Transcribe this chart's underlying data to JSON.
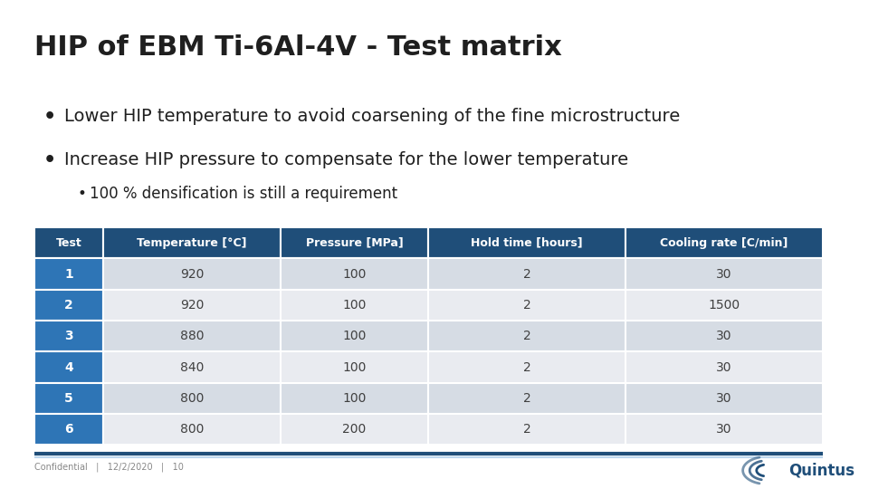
{
  "title": "HIP of EBM Ti-6Al-4V - Test matrix",
  "bullets": [
    "Lower HIP temperature to avoid coarsening of the fine microstructure",
    "Increase HIP pressure to compensate for the lower temperature"
  ],
  "sub_bullet": "100 % densification is still a requirement",
  "table_headers": [
    "Test",
    "Temperature [°C]",
    "Pressure [MPa]",
    "Hold time [hours]",
    "Cooling rate [C/min]"
  ],
  "table_data": [
    [
      "1",
      "920",
      "100",
      "2",
      "30"
    ],
    [
      "2",
      "920",
      "100",
      "2",
      "1500"
    ],
    [
      "3",
      "880",
      "100",
      "2",
      "30"
    ],
    [
      "4",
      "840",
      "100",
      "2",
      "30"
    ],
    [
      "5",
      "800",
      "100",
      "2",
      "30"
    ],
    [
      "6",
      "800",
      "200",
      "2",
      "30"
    ]
  ],
  "header_bg": "#1F4E79",
  "header_text": "#FFFFFF",
  "row_num_bg": "#2E75B6",
  "row_num_text": "#FFFFFF",
  "row_bg_even": "#D6DCE4",
  "row_bg_odd": "#E9EBF0",
  "row_text": "#404040",
  "title_color": "#1F1F1F",
  "bullet_color": "#1F1F1F",
  "bg_color": "#FFFFFF",
  "footer_line_color1": "#1F4E79",
  "footer_line_color2": "#BDD7EE",
  "footer_text": "Confidential   |   12/2/2020   |   10",
  "quintus_text": "Quintus",
  "quintus_color": "#1F4E79"
}
